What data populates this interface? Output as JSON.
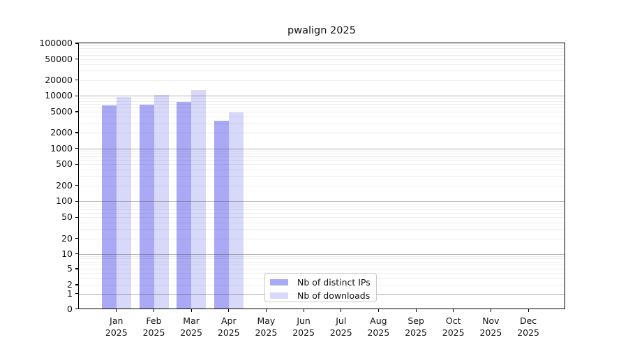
{
  "figure": {
    "title": "pwalign 2025"
  },
  "chart_data": {
    "type": "bar",
    "title": "pwalign 2025",
    "categories": [
      "Jan 2025",
      "Feb 2025",
      "Mar 2025",
      "Apr 2025",
      "May 2025",
      "Jun 2025",
      "Jul 2025",
      "Aug 2025",
      "Sep 2025",
      "Oct 2025",
      "Nov 2025",
      "Dec 2025"
    ],
    "series": [
      {
        "name": "Nb of distinct IPs",
        "color": "#a9a9f5",
        "values": [
          6500,
          6700,
          7600,
          3400,
          null,
          null,
          null,
          null,
          null,
          null,
          null,
          null
        ]
      },
      {
        "name": "Nb of downloads",
        "color": "#d8d8fa",
        "values": [
          9400,
          10500,
          12800,
          4900,
          null,
          null,
          null,
          null,
          null,
          null,
          null,
          null
        ]
      }
    ],
    "yticks": [
      100000,
      50000,
      20000,
      10000,
      5000,
      2000,
      1000,
      500,
      200,
      100,
      50,
      20,
      10,
      5,
      2,
      1,
      0
    ],
    "ylim": [
      0,
      100000
    ],
    "yscale": "log above 1, linear 0-1 (symlog-like)",
    "xlabel": "",
    "ylabel": "",
    "grid": "horizontal, darker lines at powers of 10, faint minor lines",
    "legend_position": "lower center, inside plot"
  }
}
